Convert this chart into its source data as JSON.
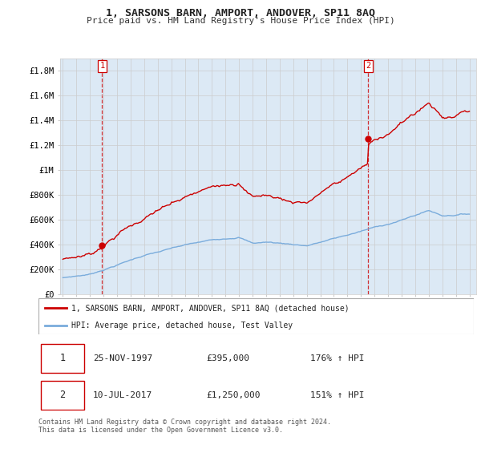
{
  "title": "1, SARSONS BARN, AMPORT, ANDOVER, SP11 8AQ",
  "subtitle": "Price paid vs. HM Land Registry's House Price Index (HPI)",
  "ylabel_ticks": [
    "£0",
    "£200K",
    "£400K",
    "£600K",
    "£800K",
    "£1M",
    "£1.2M",
    "£1.4M",
    "£1.6M",
    "£1.8M"
  ],
  "ytick_values": [
    0,
    200000,
    400000,
    600000,
    800000,
    1000000,
    1200000,
    1400000,
    1600000,
    1800000
  ],
  "ylim": [
    0,
    1900000
  ],
  "xlim_start": 1994.8,
  "xlim_end": 2025.5,
  "sale1_t": 1997.9,
  "sale1_p": 395000,
  "sale2_t": 2017.53,
  "sale2_p": 1250000,
  "legend_line1": "1, SARSONS BARN, AMPORT, ANDOVER, SP11 8AQ (detached house)",
  "legend_line2": "HPI: Average price, detached house, Test Valley",
  "table_row1": [
    "1",
    "25-NOV-1997",
    "£395,000",
    "176% ↑ HPI"
  ],
  "table_row2": [
    "2",
    "10-JUL-2017",
    "£1,250,000",
    "151% ↑ HPI"
  ],
  "footnote": "Contains HM Land Registry data © Crown copyright and database right 2024.\nThis data is licensed under the Open Government Licence v3.0.",
  "line_color_red": "#cc0000",
  "line_color_blue": "#7aacdc",
  "grid_color": "#cccccc",
  "background_color": "#ffffff",
  "plot_bg_color": "#dce9f5"
}
